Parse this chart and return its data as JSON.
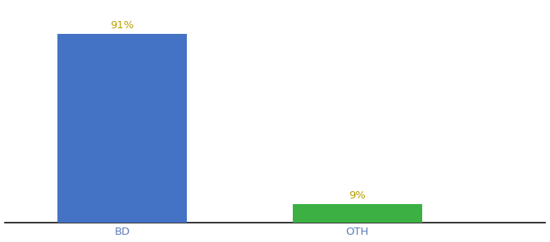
{
  "categories": [
    "BD",
    "OTH"
  ],
  "values": [
    91,
    9
  ],
  "bar_colors": [
    "#4472c4",
    "#3cb043"
  ],
  "label_texts": [
    "91%",
    "9%"
  ],
  "label_color": "#b8a000",
  "ylim": [
    0,
    105
  ],
  "bar_width": 0.55,
  "x_positions": [
    1,
    2
  ],
  "xlim": [
    0.5,
    2.8
  ],
  "background_color": "#ffffff",
  "tick_label_fontsize": 9.5,
  "value_label_fontsize": 9.5,
  "tick_label_color": "#5b7ab8",
  "spine_color": "#111111"
}
